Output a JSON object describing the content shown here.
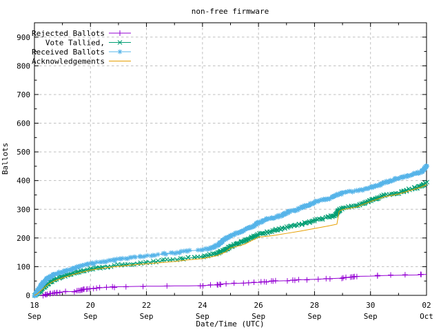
{
  "window": {
    "background": "#ffffff"
  },
  "chart_data": {
    "type": "line",
    "title": "non-free firmware",
    "xlabel": "Date/Time (UTC)",
    "ylabel": "Ballots",
    "grid": true,
    "legend_position": "top-left",
    "xlim": [
      0,
      14
    ],
    "ylim": [
      0,
      950
    ],
    "x_axis_note": "days elapsed from 18 Sep to 02 Oct (UTC)",
    "xticks": [
      {
        "pos": 0,
        "day": "18",
        "month": "Sep"
      },
      {
        "pos": 2,
        "day": "20",
        "month": "Sep"
      },
      {
        "pos": 4,
        "day": "22",
        "month": "Sep"
      },
      {
        "pos": 6,
        "day": "24",
        "month": "Sep"
      },
      {
        "pos": 8,
        "day": "26",
        "month": "Sep"
      },
      {
        "pos": 10,
        "day": "28",
        "month": "Sep"
      },
      {
        "pos": 12,
        "day": "30",
        "month": "Sep"
      },
      {
        "pos": 14,
        "day": "02",
        "month": "Oct"
      }
    ],
    "xminor": [
      1,
      3,
      5,
      7,
      9,
      11,
      13
    ],
    "yticks": [
      0,
      100,
      200,
      300,
      400,
      500,
      600,
      700,
      800,
      900
    ],
    "yminor": [
      50,
      150,
      250,
      350,
      450,
      550,
      650,
      750,
      850
    ],
    "grid_color": "#bfbfbf",
    "series": [
      {
        "name": "Rejected Ballots",
        "color": "#9400d3",
        "marker": "plus",
        "points": [
          [
            0.3,
            0
          ],
          [
            0.45,
            3
          ],
          [
            0.6,
            6
          ],
          [
            0.75,
            9
          ],
          [
            0.85,
            11
          ],
          [
            1,
            12
          ],
          [
            1.5,
            14
          ],
          [
            1.65,
            17
          ],
          [
            1.75,
            20
          ],
          [
            1.85,
            22
          ],
          [
            2,
            24
          ],
          [
            2.3,
            26
          ],
          [
            2.6,
            28
          ],
          [
            3,
            30
          ],
          [
            3.5,
            31
          ],
          [
            4,
            32
          ],
          [
            4.5,
            32
          ],
          [
            5,
            33
          ],
          [
            5.5,
            33
          ],
          [
            6,
            34
          ],
          [
            6.55,
            37
          ],
          [
            6.7,
            40
          ],
          [
            7,
            41
          ],
          [
            7.5,
            43
          ],
          [
            8,
            45
          ],
          [
            8.35,
            48
          ],
          [
            8.6,
            50
          ],
          [
            9,
            51
          ],
          [
            9.4,
            54
          ],
          [
            10,
            56
          ],
          [
            10.5,
            58
          ],
          [
            11,
            60
          ],
          [
            11.3,
            63
          ],
          [
            11.45,
            66
          ],
          [
            12,
            67
          ],
          [
            12.5,
            69
          ],
          [
            13,
            70
          ],
          [
            13.65,
            71
          ],
          [
            13.8,
            72
          ],
          [
            14,
            73
          ]
        ]
      },
      {
        "name": "Vote Tallied,",
        "color": "#009e73",
        "marker": "cross",
        "points": [
          [
            0,
            0
          ],
          [
            0.1,
            6
          ],
          [
            0.2,
            16
          ],
          [
            0.35,
            30
          ],
          [
            0.5,
            42
          ],
          [
            0.7,
            54
          ],
          [
            1,
            65
          ],
          [
            1.5,
            80
          ],
          [
            2,
            92
          ],
          [
            2.5,
            100
          ],
          [
            3,
            105
          ],
          [
            3.5,
            110
          ],
          [
            4,
            115
          ],
          [
            4.5,
            120
          ],
          [
            5,
            125
          ],
          [
            5.5,
            130
          ],
          [
            6,
            135
          ],
          [
            6.5,
            146
          ],
          [
            6.8,
            158
          ],
          [
            7,
            170
          ],
          [
            7.2,
            178
          ],
          [
            7.5,
            190
          ],
          [
            8,
            212
          ],
          [
            8.5,
            224
          ],
          [
            9,
            238
          ],
          [
            9.5,
            248
          ],
          [
            10,
            262
          ],
          [
            10.5,
            272
          ],
          [
            10.75,
            280
          ],
          [
            10.9,
            298
          ],
          [
            11,
            304
          ],
          [
            11.5,
            312
          ],
          [
            12,
            330
          ],
          [
            12.5,
            348
          ],
          [
            13,
            357
          ],
          [
            13.5,
            372
          ],
          [
            13.8,
            380
          ],
          [
            14,
            392
          ]
        ]
      },
      {
        "name": "Received Ballots",
        "color": "#56b4e9",
        "marker": "asterisk",
        "points": [
          [
            0,
            0
          ],
          [
            0.08,
            8
          ],
          [
            0.15,
            20
          ],
          [
            0.25,
            35
          ],
          [
            0.35,
            48
          ],
          [
            0.5,
            62
          ],
          [
            0.7,
            73
          ],
          [
            1,
            82
          ],
          [
            1.3,
            90
          ],
          [
            1.6,
            101
          ],
          [
            2,
            110
          ],
          [
            2.5,
            117
          ],
          [
            3,
            125
          ],
          [
            3.5,
            132
          ],
          [
            4,
            138
          ],
          [
            4.5,
            143
          ],
          [
            5,
            148
          ],
          [
            5.5,
            155
          ],
          [
            6,
            158
          ],
          [
            6.3,
            164
          ],
          [
            6.55,
            175
          ],
          [
            6.75,
            192
          ],
          [
            6.95,
            205
          ],
          [
            7.1,
            212
          ],
          [
            7.3,
            220
          ],
          [
            7.5,
            227
          ],
          [
            7.8,
            240
          ],
          [
            8,
            254
          ],
          [
            8.3,
            265
          ],
          [
            8.6,
            272
          ],
          [
            8.9,
            282
          ],
          [
            9.1,
            292
          ],
          [
            9.4,
            300
          ],
          [
            9.7,
            312
          ],
          [
            10,
            325
          ],
          [
            10.4,
            335
          ],
          [
            10.65,
            342
          ],
          [
            10.8,
            350
          ],
          [
            11,
            356
          ],
          [
            11.3,
            362
          ],
          [
            11.6,
            366
          ],
          [
            12,
            375
          ],
          [
            12.3,
            385
          ],
          [
            12.6,
            397
          ],
          [
            13,
            408
          ],
          [
            13.3,
            415
          ],
          [
            13.6,
            424
          ],
          [
            13.8,
            430
          ],
          [
            13.92,
            440
          ],
          [
            14,
            452
          ]
        ]
      },
      {
        "name": "Acknowledgements",
        "color": "#e69f00",
        "marker": "none",
        "points": [
          [
            0,
            0
          ],
          [
            0.1,
            5
          ],
          [
            0.2,
            14
          ],
          [
            0.35,
            27
          ],
          [
            0.5,
            39
          ],
          [
            0.7,
            50
          ],
          [
            1,
            61
          ],
          [
            1.5,
            76
          ],
          [
            2,
            88
          ],
          [
            2.5,
            96
          ],
          [
            3,
            101
          ],
          [
            3.5,
            106
          ],
          [
            4,
            110
          ],
          [
            4.5,
            114
          ],
          [
            5,
            118
          ],
          [
            5.5,
            124
          ],
          [
            6,
            128
          ],
          [
            6.5,
            138
          ],
          [
            6.8,
            150
          ],
          [
            7,
            165
          ],
          [
            7.2,
            170
          ],
          [
            7.5,
            178
          ],
          [
            8,
            203
          ],
          [
            8.5,
            208
          ],
          [
            9,
            216
          ],
          [
            9.5,
            224
          ],
          [
            10,
            233
          ],
          [
            10.5,
            242
          ],
          [
            10.8,
            248
          ],
          [
            10.88,
            293
          ],
          [
            11,
            299
          ],
          [
            11.5,
            308
          ],
          [
            12,
            327
          ],
          [
            12.5,
            344
          ],
          [
            13,
            353
          ],
          [
            13.5,
            368
          ],
          [
            13.8,
            377
          ],
          [
            14,
            386
          ]
        ]
      }
    ]
  }
}
